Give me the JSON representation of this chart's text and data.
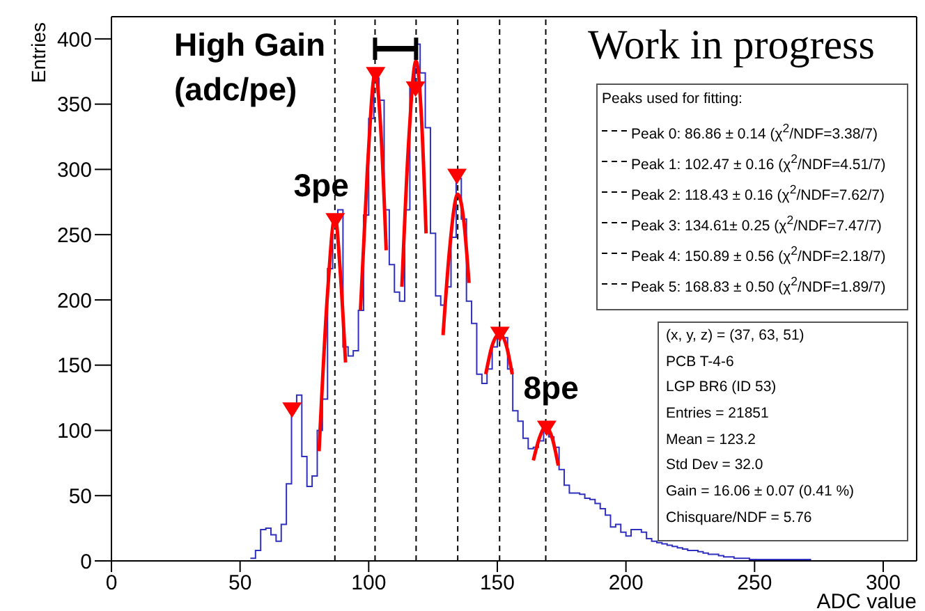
{
  "chart_data": {
    "type": "histogram",
    "xlabel": "ADC value",
    "ylabel": "Entries",
    "color": "#3030c0",
    "bins": [
      54,
      56,
      58,
      60,
      62,
      64,
      66,
      68,
      70,
      72,
      74,
      76,
      78,
      80,
      82,
      84,
      86,
      88,
      90,
      92,
      94,
      96,
      98,
      100,
      102,
      104,
      106,
      108,
      110,
      112,
      114,
      116,
      118,
      120,
      122,
      124,
      126,
      128,
      130,
      132,
      134,
      136,
      138,
      140,
      142,
      144,
      146,
      148,
      150,
      152,
      154,
      156,
      158,
      160,
      162,
      164,
      166,
      168,
      170,
      172,
      174,
      176,
      178,
      180,
      182,
      184,
      186,
      188,
      190,
      192,
      194,
      196,
      198,
      200,
      202,
      204,
      206,
      208,
      210,
      212,
      214,
      216,
      218,
      220,
      222,
      224,
      226,
      228,
      230,
      232,
      234,
      236,
      238,
      240,
      242,
      244,
      246,
      248,
      250,
      252,
      254,
      256,
      258,
      260,
      262,
      264,
      266,
      268,
      270,
      272
    ],
    "values": [
      2,
      8,
      24,
      25,
      20,
      15,
      28,
      59,
      119,
      127,
      80,
      57,
      65,
      100,
      124,
      224,
      262,
      269,
      164,
      157,
      161,
      192,
      265,
      339,
      370,
      353,
      269,
      227,
      206,
      199,
      269,
      363,
      396,
      374,
      332,
      251,
      203,
      196,
      210,
      248,
      293,
      262,
      199,
      182,
      143,
      136,
      147,
      164,
      175,
      171,
      147,
      115,
      107,
      94,
      86,
      87,
      92,
      105,
      95,
      87,
      70,
      58,
      52,
      52,
      51,
      48,
      47,
      44,
      40,
      35,
      26,
      28,
      22,
      19,
      24,
      24,
      22,
      17,
      15,
      14,
      13,
      12,
      11,
      10,
      9,
      8,
      8,
      7,
      6,
      5,
      5,
      4,
      3,
      3,
      2,
      2,
      2,
      1,
      1,
      1,
      1,
      1,
      1,
      1,
      1,
      1,
      1,
      1,
      1
    ],
    "series": [
      {
        "type": "line",
        "color": "#ff0000",
        "x": [
          80.7,
          84,
          86.9,
          89,
          91
        ],
        "values": [
          84,
          205,
          264,
          220,
          152
        ]
      },
      {
        "type": "line",
        "color": "#ff0000",
        "x": [
          96.8,
          99.5,
          102.5,
          105,
          106.8
        ],
        "values": [
          192,
          300,
          374,
          320,
          238
        ]
      },
      {
        "type": "line",
        "color": "#ff0000",
        "x": [
          112.9,
          115.5,
          118.4,
          120.5,
          122.3
        ],
        "values": [
          210,
          320,
          383,
          340,
          251
        ]
      },
      {
        "type": "line",
        "color": "#ff0000",
        "x": [
          128.9,
          131.5,
          134.6,
          137,
          139
        ],
        "values": [
          173,
          240,
          281,
          260,
          213
        ]
      },
      {
        "type": "line",
        "color": "#ff0000",
        "x": [
          145.5,
          148,
          150.9,
          153.5,
          155.8
        ],
        "values": [
          143,
          165,
          174,
          165,
          143
        ]
      },
      {
        "type": "line",
        "color": "#ff0000",
        "x": [
          164,
          166.5,
          168.8,
          171.5,
          173.7
        ],
        "values": [
          77,
          95,
          103,
          93,
          73
        ]
      },
      {
        "type": "scatter",
        "color": "#ff0000",
        "marker": "triangle",
        "x": [
          70.2,
          87,
          102.7,
          118.2,
          134.3,
          151,
          169.2
        ],
        "values": [
          114,
          259,
          371,
          360,
          293,
          172,
          100
        ]
      }
    ],
    "xlim": [
      0,
      313
    ],
    "ylim": [
      0,
      417
    ],
    "xticks": [
      0,
      50,
      100,
      150,
      200,
      250,
      300
    ],
    "yticks": [
      0,
      50,
      100,
      150,
      200,
      250,
      300,
      350,
      400
    ],
    "grid": false,
    "ref_lines": [
      {
        "axis": "x",
        "value": 86.86,
        "color": "#000000",
        "line_style": "dashed"
      },
      {
        "axis": "x",
        "value": 102.47,
        "color": "#000000",
        "line_style": "dashed"
      },
      {
        "axis": "x",
        "value": 118.43,
        "color": "#000000",
        "line_style": "dashed"
      },
      {
        "axis": "x",
        "value": 134.61,
        "color": "#000000",
        "line_style": "dashed"
      },
      {
        "axis": "x",
        "value": 150.89,
        "color": "#000000",
        "line_style": "dashed"
      },
      {
        "axis": "x",
        "value": 168.83,
        "color": "#000000",
        "line_style": "dashed"
      }
    ],
    "annotations": [
      "High Gain\n(adc/pe)",
      {
        "text": "3pe",
        "x": 86.86,
        "y": 269
      },
      {
        "text": "8pe",
        "x": 168.83,
        "y": 105
      },
      "Work in progress",
      "Peaks used for fitting:",
      "Peak 0: 86.86 ± 0.14 (χ$^{2}$/NDF=3.38/7)",
      "Peak 1: 102.47 ± 0.16 (χ$^{2}$/NDF=4.51/7)",
      "Peak 2: 118.43 ± 0.16 (χ$^{2}$/NDF=7.62/7)",
      "Peak 3: 134.61± 0.25 (χ$^{2}$/NDF=7.47/7)",
      "Peak 4: 150.89 ± 0.56 (χ$^{2}$/NDF=2.18/7)",
      "Peak 5: 168.83 ± 0.50 (χ$^{2}$/NDF=1.89/7)",
      "(x, y, z) = (37, 63, 51)",
      "PCB T-4-6",
      "LGP BR6 (ID 53)",
      "Entries = 21851",
      "Mean = 123.2",
      "Std Dev = 32.0",
      "Gain = 16.06 ± 0.07 (0.41 %)",
      "Chisquare/NDF = 5.76"
    ]
  }
}
